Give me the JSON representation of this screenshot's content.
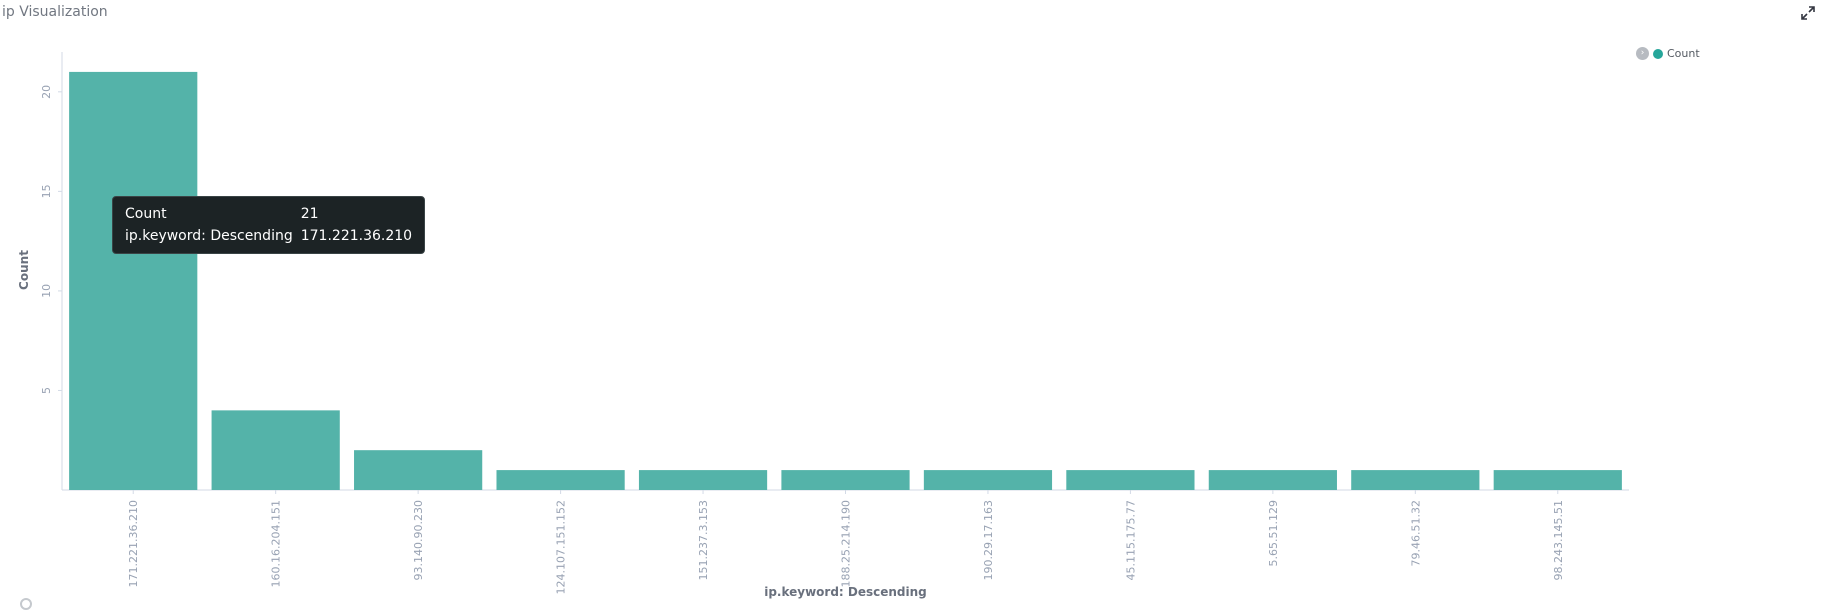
{
  "panel": {
    "title": "ip Visualization"
  },
  "icons": {
    "expand": "expand-icon",
    "legend_toggle": "chevron-right-icon"
  },
  "legend": {
    "entries": [
      {
        "label": "Count",
        "color": "#26a69a"
      }
    ]
  },
  "tooltip": {
    "rows": [
      {
        "key": "Count",
        "value": "21"
      },
      {
        "key": "ip.keyword: Descending",
        "value": "171.221.36.210"
      }
    ]
  },
  "chart_data": {
    "type": "bar",
    "title": "",
    "xlabel": "ip.keyword: Descending",
    "ylabel": "Count",
    "categories": [
      "171.221.36.210",
      "160.16.204.151",
      "93.140.90.230",
      "124.107.151.152",
      "151.237.3.153",
      "188.25.214.190",
      "190.29.17.163",
      "45.115.175.77",
      "5.65.51.129",
      "79.46.51.32",
      "98.243.145.51"
    ],
    "series": [
      {
        "name": "Count",
        "values": [
          21,
          4,
          2,
          1,
          1,
          1,
          1,
          1,
          1,
          1,
          1
        ]
      }
    ],
    "ylim": [
      0,
      22
    ],
    "yticks": [
      "5",
      "10",
      "15",
      "20"
    ],
    "bar_color": "#54b3a9",
    "legend_position": "top-right",
    "grid": false
  }
}
